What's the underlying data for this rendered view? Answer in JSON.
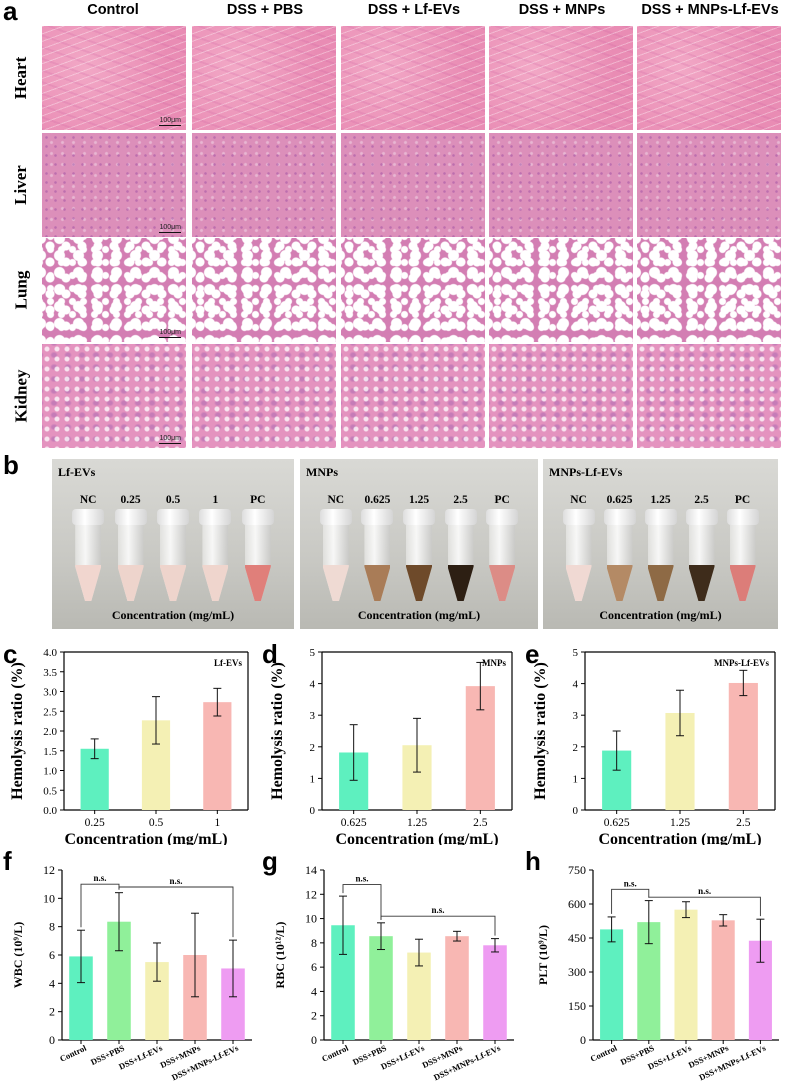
{
  "panels": {
    "a": "a",
    "b": "b",
    "c": "c",
    "d": "d",
    "e": "e",
    "f": "f",
    "g": "g",
    "h": "h"
  },
  "histology": {
    "columns": [
      "Control",
      "DSS + PBS",
      "DSS + Lf-EVs",
      "DSS + MNPs",
      "DSS + MNPs-Lf-EVs"
    ],
    "rows": [
      "Heart",
      "Liver",
      "Lung",
      "Kidney"
    ],
    "scale_bar": "100μm"
  },
  "hemolysis_photos": [
    {
      "title": "Lf-EVs",
      "labels": [
        "NC",
        "0.25",
        "0.5",
        "1",
        "PC"
      ],
      "liquid_colors": [
        "#f1d6cf",
        "#eed4cc",
        "#eed4cc",
        "#efd5cd",
        "#e07f7a"
      ],
      "xlabel": "Concentration (mg/mL)"
    },
    {
      "title": "MNPs",
      "labels": [
        "NC",
        "0.625",
        "1.25",
        "2.5",
        "PC"
      ],
      "liquid_colors": [
        "#efdad3",
        "#a97c57",
        "#6e4a2a",
        "#2d1f13",
        "#dc8c86"
      ],
      "xlabel": "Concentration (mg/mL)"
    },
    {
      "title": "MNPs-Lf-EVs",
      "labels": [
        "NC",
        "0.625",
        "1.25",
        "2.5",
        "PC"
      ],
      "liquid_colors": [
        "#f0d9d3",
        "#b48a65",
        "#8e6a45",
        "#3e2c1b",
        "#dc7d79"
      ],
      "xlabel": "Concentration (mg/mL)"
    }
  ],
  "chart_data": [
    {
      "id": "c",
      "type": "bar",
      "title": "Lf-EVs",
      "categories": [
        "0.25",
        "0.5",
        "1"
      ],
      "values": [
        1.55,
        2.27,
        2.73
      ],
      "errors": [
        0.25,
        0.6,
        0.35
      ],
      "colors": [
        "#5ef0bf",
        "#f4f0b4",
        "#f8b7b3"
      ],
      "ylabel": "Hemolysis ratio (%)",
      "xlabel": "Concentration (mg/mL)",
      "ylim": [
        0,
        4.0
      ],
      "yticks": [
        "0.0",
        "0.5",
        "1.0",
        "1.5",
        "2.0",
        "2.5",
        "3.0",
        "3.5",
        "4.0"
      ]
    },
    {
      "id": "d",
      "type": "bar",
      "title": "MNPs",
      "categories": [
        "0.625",
        "1.25",
        "2.5"
      ],
      "values": [
        1.82,
        2.05,
        3.92
      ],
      "errors": [
        0.88,
        0.85,
        0.75
      ],
      "colors": [
        "#5ef0bf",
        "#f4f0b4",
        "#f8b7b3"
      ],
      "ylabel": "Hemolysis ratio (%)",
      "xlabel": "Concentration (mg/mL)",
      "ylim": [
        0,
        5
      ],
      "yticks": [
        "0",
        "1",
        "2",
        "3",
        "4",
        "5"
      ]
    },
    {
      "id": "e",
      "type": "bar",
      "title": "MNPs-Lf-EVs",
      "categories": [
        "0.625",
        "1.25",
        "2.5"
      ],
      "values": [
        1.88,
        3.07,
        4.02
      ],
      "errors": [
        0.62,
        0.72,
        0.4
      ],
      "colors": [
        "#5ef0bf",
        "#f4f0b4",
        "#f8b7b3"
      ],
      "ylabel": "Hemolysis ratio (%)",
      "xlabel": "Concentration (mg/mL)",
      "ylim": [
        0,
        5
      ],
      "yticks": [
        "0",
        "1",
        "2",
        "3",
        "4",
        "5"
      ]
    },
    {
      "id": "f",
      "type": "bar",
      "title": "",
      "categories": [
        "Control",
        "DSS+PBS",
        "DSS+Lf-EVs",
        "DSS+MNPs",
        "DSS+MNPs-Lf-EVs"
      ],
      "values": [
        5.9,
        8.35,
        5.5,
        6.0,
        5.05
      ],
      "errors": [
        1.85,
        2.05,
        1.35,
        2.95,
        2.0
      ],
      "colors": [
        "#5ef0bf",
        "#90f09a",
        "#f4f0b4",
        "#f8b7b3",
        "#ee9cf2"
      ],
      "ylabel": "WBC (10⁹/L)",
      "ylim": [
        0,
        12
      ],
      "yticks": [
        "0",
        "2",
        "4",
        "6",
        "8",
        "10",
        "12"
      ],
      "annotations": [
        {
          "text": "n.s.",
          "from": 0,
          "to": 1,
          "level": 11.0
        },
        {
          "text": "n.s.",
          "from": 1,
          "to": 4,
          "level": 10.8
        }
      ]
    },
    {
      "id": "g",
      "type": "bar",
      "title": "",
      "categories": [
        "Control",
        "DSS+PBS",
        "DSS+Lf-EVs",
        "DSS+MNPs",
        "DSS+MNPs-Lf-EVs"
      ],
      "values": [
        9.45,
        8.55,
        7.2,
        8.55,
        7.8
      ],
      "errors": [
        2.4,
        1.1,
        1.1,
        0.4,
        0.55
      ],
      "colors": [
        "#5ef0bf",
        "#90f09a",
        "#f4f0b4",
        "#f8b7b3",
        "#ee9cf2"
      ],
      "ylabel": "RBC (10¹²/L)",
      "ylim": [
        0,
        14
      ],
      "yticks": [
        "0",
        "2",
        "4",
        "6",
        "8",
        "10",
        "12",
        "14"
      ],
      "annotations": [
        {
          "text": "n.s.",
          "from": 0,
          "to": 1,
          "level": 12.8
        },
        {
          "text": "n.s.",
          "from": 1,
          "to": 4,
          "level": 10.2
        }
      ]
    },
    {
      "id": "h",
      "type": "bar",
      "title": "",
      "categories": [
        "Control",
        "DSS+PBS",
        "DSS+Lf-EVs",
        "DSS+MNPs",
        "DSS+MNPs-Lf-EVs"
      ],
      "values": [
        488,
        520,
        575,
        528,
        438
      ],
      "errors": [
        55,
        95,
        35,
        25,
        95
      ],
      "colors": [
        "#5ef0bf",
        "#90f09a",
        "#f4f0b4",
        "#f8b7b3",
        "#ee9cf2"
      ],
      "ylabel": "PLT (10⁹/L)",
      "ylim": [
        0,
        750
      ],
      "yticks": [
        "0",
        "150",
        "300",
        "450",
        "600",
        "750"
      ],
      "annotations": [
        {
          "text": "n.s.",
          "from": 0,
          "to": 1,
          "level": 665
        },
        {
          "text": "n.s.",
          "from": 1,
          "to": 4,
          "level": 630
        }
      ]
    }
  ]
}
